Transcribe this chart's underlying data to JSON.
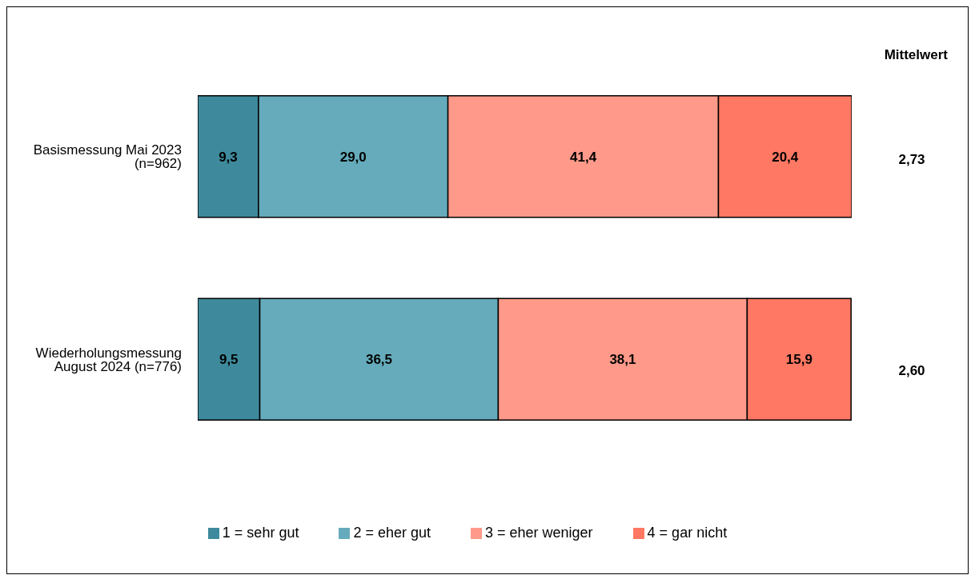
{
  "chart_data": {
    "type": "bar",
    "orientation": "horizontal",
    "stacked": true,
    "categories": [
      "Basismessung Mai 2023 (n=962)",
      "Wiederholungsmessung August 2024 (n=776)"
    ],
    "series": [
      {
        "name": "1 = sehr gut",
        "color": "#3e8a9c",
        "values": [
          9.3,
          9.5
        ],
        "value_labels": [
          "9,3",
          "9,5"
        ]
      },
      {
        "name": "2 = eher gut",
        "color": "#65abbb",
        "values": [
          29.0,
          36.5
        ],
        "value_labels": [
          "29,0",
          "36,5"
        ]
      },
      {
        "name": "3 = eher weniger",
        "color": "#ff9a8a",
        "values": [
          41.4,
          38.1
        ],
        "value_labels": [
          "41,4",
          "38,1"
        ]
      },
      {
        "name": "4 = gar nicht",
        "color": "#ff7863",
        "values": [
          20.4,
          15.9
        ],
        "value_labels": [
          "20,4",
          "15,9"
        ]
      }
    ],
    "annotations": [
      "Mittelwert",
      "2,73",
      "2,60"
    ],
    "legend": "bottom",
    "grid": false
  }
}
